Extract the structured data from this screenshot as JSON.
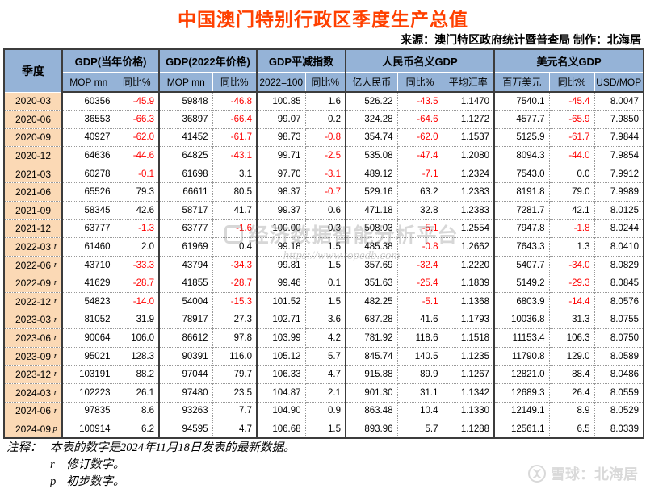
{
  "title": "中国澳门特别行政区季度生产总值",
  "source_line": "来源：澳门特区政府统计暨普查局  制作：北海居",
  "colors": {
    "title": "#FF4000",
    "header_bg": "#95B3D7",
    "quarter_col_bg": "#FBD9B5",
    "negative_value": "#FF0000"
  },
  "table": {
    "quarter_header": "季度",
    "groups": [
      {
        "label": "GDP(当年价格)",
        "cols": [
          "MOP mn",
          "同比%"
        ]
      },
      {
        "label": "GDP(2022年价格)",
        "cols": [
          "MOP mn",
          "同比%"
        ]
      },
      {
        "label": "GDP平减指数",
        "cols": [
          "2022=100",
          "同比%"
        ]
      },
      {
        "label": "人民币名义GDP",
        "cols": [
          "亿人民币",
          "同比%",
          "平均汇率"
        ]
      },
      {
        "label": "美元名义GDP",
        "cols": [
          "百万美元",
          "同比%",
          "USD/MOP"
        ]
      }
    ],
    "rows": [
      {
        "quarter": "2020-03",
        "marker": "",
        "values": [
          "60356",
          "-45.9",
          "59848",
          "-46.8",
          "100.85",
          "1.6",
          "526.22",
          "-43.5",
          "1.1470",
          "7540.1",
          "-45.4",
          "8.0047"
        ]
      },
      {
        "quarter": "2020-06",
        "marker": "",
        "values": [
          "36553",
          "-66.3",
          "36897",
          "-66.4",
          "99.07",
          "0.2",
          "324.28",
          "-64.6",
          "1.1272",
          "4577.7",
          "-65.9",
          "7.9850"
        ]
      },
      {
        "quarter": "2020-09",
        "marker": "",
        "values": [
          "40927",
          "-62.0",
          "41452",
          "-61.7",
          "98.73",
          "-0.8",
          "354.74",
          "-62.0",
          "1.1537",
          "5125.9",
          "-61.7",
          "7.9844"
        ]
      },
      {
        "quarter": "2020-12",
        "marker": "",
        "values": [
          "64636",
          "-44.6",
          "64825",
          "-43.1",
          "99.71",
          "-2.5",
          "535.08",
          "-47.4",
          "1.2080",
          "8094.3",
          "-44.0",
          "7.9854"
        ]
      },
      {
        "quarter": "2021-03",
        "marker": "",
        "values": [
          "60278",
          "-0.1",
          "61698",
          "3.1",
          "97.70",
          "-3.1",
          "489.12",
          "-7.1",
          "1.2324",
          "7543.0",
          "0.0",
          "7.9912"
        ]
      },
      {
        "quarter": "2021-06",
        "marker": "",
        "values": [
          "65526",
          "79.3",
          "66611",
          "80.5",
          "98.37",
          "-0.7",
          "529.16",
          "63.2",
          "1.2383",
          "8191.8",
          "79.0",
          "7.9989"
        ]
      },
      {
        "quarter": "2021-09",
        "marker": "",
        "values": [
          "58345",
          "42.6",
          "58717",
          "41.7",
          "99.37",
          "0.6",
          "471.18",
          "32.8",
          "1.2383",
          "7281.7",
          "42.1",
          "8.0125"
        ]
      },
      {
        "quarter": "2021-12",
        "marker": "",
        "values": [
          "63777",
          "-1.3",
          "63777",
          "-1.6",
          "100.00",
          "0.3",
          "508.03",
          "-5.1",
          "1.2554",
          "7947.8",
          "-1.8",
          "8.0244"
        ]
      },
      {
        "quarter": "2022-03",
        "marker": "r",
        "values": [
          "61460",
          "2.0",
          "61969",
          "0.4",
          "99.18",
          "1.5",
          "485.38",
          "-0.8",
          "1.2662",
          "7643.3",
          "1.3",
          "8.0410"
        ]
      },
      {
        "quarter": "2022-06",
        "marker": "r",
        "values": [
          "43710",
          "-33.3",
          "43794",
          "-34.3",
          "99.81",
          "1.5",
          "357.69",
          "-32.4",
          "1.2220",
          "5407.7",
          "-34.0",
          "8.0829"
        ]
      },
      {
        "quarter": "2022-09",
        "marker": "r",
        "values": [
          "41629",
          "-28.7",
          "41855",
          "-28.7",
          "99.46",
          "0.1",
          "351.63",
          "-25.4",
          "1.1839",
          "5149.2",
          "-29.3",
          "8.0845"
        ]
      },
      {
        "quarter": "2022-12",
        "marker": "r",
        "values": [
          "54823",
          "-14.0",
          "54004",
          "-15.3",
          "101.52",
          "1.5",
          "482.25",
          "-5.1",
          "1.1368",
          "6803.9",
          "-14.4",
          "8.0576"
        ]
      },
      {
        "quarter": "2023-03",
        "marker": "r",
        "values": [
          "81052",
          "31.9",
          "78917",
          "27.3",
          "102.71",
          "3.6",
          "687.28",
          "41.6",
          "1.1793",
          "10036.8",
          "31.3",
          "8.0755"
        ]
      },
      {
        "quarter": "2023-06",
        "marker": "r",
        "values": [
          "90064",
          "106.0",
          "86612",
          "97.8",
          "103.99",
          "4.2",
          "781.92",
          "118.6",
          "1.1518",
          "11153.4",
          "106.3",
          "8.0750"
        ]
      },
      {
        "quarter": "2023-09",
        "marker": "r",
        "values": [
          "95021",
          "128.3",
          "90391",
          "116.0",
          "105.12",
          "5.7",
          "845.74",
          "140.5",
          "1.1235",
          "11790.8",
          "129.0",
          "8.0589"
        ]
      },
      {
        "quarter": "2023-12",
        "marker": "r",
        "values": [
          "103191",
          "88.2",
          "97044",
          "79.7",
          "106.33",
          "4.7",
          "915.88",
          "89.9",
          "1.1267",
          "12821.0",
          "88.4",
          "8.0486"
        ]
      },
      {
        "quarter": "2024-03",
        "marker": "r",
        "values": [
          "102223",
          "26.1",
          "97480",
          "23.5",
          "104.87",
          "2.1",
          "901.30",
          "31.1",
          "1.1342",
          "12689.3",
          "26.4",
          "8.0559"
        ]
      },
      {
        "quarter": "2024-06",
        "marker": "r",
        "values": [
          "97835",
          "8.6",
          "93263",
          "7.7",
          "104.90",
          "0.9",
          "863.48",
          "10.4",
          "1.1330",
          "12149.1",
          "8.9",
          "8.0529"
        ]
      },
      {
        "quarter": "2024-09",
        "marker": "p",
        "values": [
          "100914",
          "6.2",
          "94595",
          "4.7",
          "106.68",
          "1.5",
          "893.96",
          "5.7",
          "1.1288",
          "12561.1",
          "6.5",
          "8.0339"
        ]
      }
    ]
  },
  "notes": {
    "label": "注释：",
    "line1": "本表的数字是2024年11月18日发表的最新数据。",
    "line2_marker": "r",
    "line2_text": "修订数字。",
    "line3_marker": "p",
    "line3_text": "初步数字。"
  },
  "watermarks": {
    "center_text": "经济数据智能分析平台",
    "center_url": "https://www.topedb.com",
    "bottom_right": "雪球：北海居"
  }
}
